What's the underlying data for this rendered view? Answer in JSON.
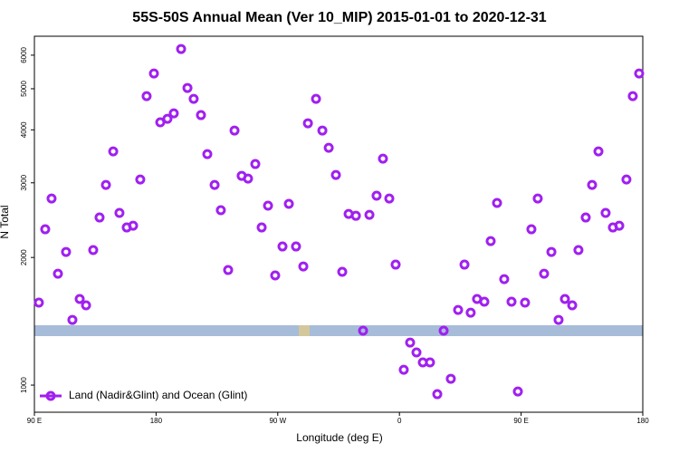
{
  "chart_data": {
    "type": "scatter",
    "title": "55S-50S Annual Mean (Ver 10_MIP)   2015-01-01 to 2020-12-31",
    "x_label": "Longitude (deg E)",
    "y_label": "N Total",
    "log_y": true,
    "legend": "lower left",
    "xlim": [
      90,
      540
    ],
    "ylim": [
      863,
      6650
    ],
    "xticks": [
      {
        "value": 90,
        "label": "90 E"
      },
      {
        "value": 180,
        "label": "180"
      },
      {
        "value": 270,
        "label": "90 W"
      },
      {
        "value": 360,
        "label": "0"
      },
      {
        "value": 450,
        "label": "90 E"
      },
      {
        "value": 540,
        "label": "180"
      }
    ],
    "yticks": [
      1000,
      2000,
      3000,
      4000,
      5000,
      6000
    ],
    "series": [
      {
        "name": "Land (Nadir&Glint) and Ocean (Glint)",
        "color": "#a020f0",
        "x": [
          93.3,
          98.0,
          102.7,
          107.4,
          113.4,
          118.1,
          123.5,
          128.2,
          133.5,
          138.2,
          142.9,
          148.3,
          152.9,
          158.3,
          163.0,
          168.3,
          173.0,
          178.4,
          183.1,
          188.4,
          193.1,
          198.5,
          203.2,
          207.8,
          213.2,
          217.9,
          223.3,
          227.9,
          233.3,
          238.0,
          243.3,
          248.0,
          253.4,
          258.1,
          262.8,
          268.1,
          273.5,
          278.2,
          283.5,
          288.9,
          292.3,
          298.3,
          303.0,
          307.7,
          313.0,
          317.7,
          322.4,
          327.8,
          333.1,
          337.8,
          343.1,
          347.8,
          352.5,
          357.2,
          363.2,
          367.9,
          372.6,
          377.3,
          382.6,
          388.0,
          392.7,
          398.0,
          403.4,
          408.1,
          412.7,
          417.4,
          422.8,
          427.5,
          432.2,
          437.5,
          442.9,
          447.6,
          452.9,
          457.6,
          462.3,
          467.0,
          472.4,
          477.7,
          482.4,
          487.8,
          492.4,
          497.8,
          502.5,
          507.2,
          512.5,
          517.9,
          522.6,
          527.9,
          532.6,
          537.3
        ],
        "values": [
          1565,
          2331,
          2755,
          1831,
          2061,
          1425,
          1596,
          1542,
          2082,
          2485,
          2966,
          3558,
          2547,
          2354,
          2377,
          3055,
          4804,
          5433,
          4166,
          4248,
          4375,
          6205,
          5022,
          4733,
          4333,
          3506,
          2966,
          2585,
          1868,
          3985,
          3116,
          3070,
          3322,
          2354,
          2650,
          1814,
          2123,
          2676,
          2123,
          1905,
          4145,
          4733,
          3985,
          3629,
          3131,
          1850,
          2534,
          2508,
          1344,
          2521,
          2797,
          3421,
          2755,
          1924,
          1087,
          1260,
          1194,
          1131,
          1131,
          952,
          1344,
          1035,
          1504,
          1924,
          1482,
          1596,
          1573,
          2186,
          2689,
          1778,
          1573,
          966,
          1565,
          2331,
          2755,
          1831,
          2061,
          1425,
          1596,
          1542,
          2082,
          2485,
          2966,
          3558,
          2547,
          2354,
          2377,
          3055,
          4804,
          5433
        ]
      }
    ]
  }
}
